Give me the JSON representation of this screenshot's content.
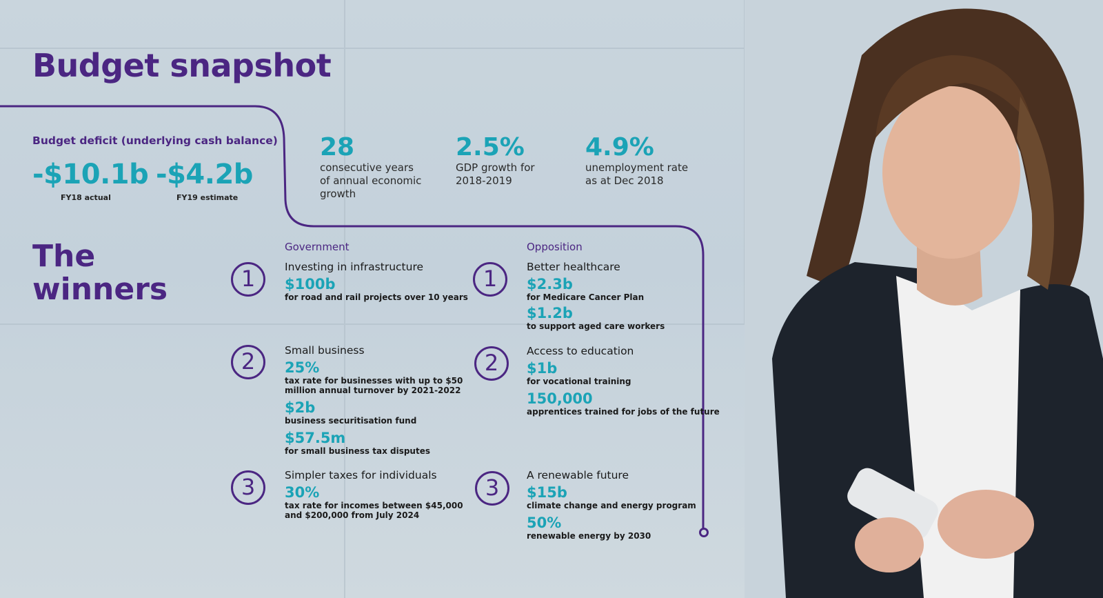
{
  "title": "Budget snapshot",
  "deficit": {
    "label": "Budget deficit (underlying cash balance)",
    "items": [
      {
        "value": "-$10.1b",
        "caption": "FY18 actual"
      },
      {
        "value": "-$4.2b",
        "caption": "FY19 estimate"
      }
    ]
  },
  "stats": [
    {
      "value": "28",
      "text1": "consecutive years",
      "text2": "of annual economic",
      "text3": "growth"
    },
    {
      "value": "2.5%",
      "text1": "GDP growth for",
      "text2": "2018-2019",
      "text3": ""
    },
    {
      "value": "4.9%",
      "text1": "unemployment rate",
      "text2": "as at Dec 2018",
      "text3": ""
    }
  ],
  "winners": {
    "line1": "The",
    "line2": "winners"
  },
  "government": {
    "heading": "Government",
    "items": [
      {
        "num": "1",
        "title": "Investing in infrastructure",
        "v1": "$100b",
        "d1": "for road and rail projects over 10 years"
      },
      {
        "num": "2",
        "title": "Small business",
        "v1": "25%",
        "d1a": "tax rate for businesses with up to $50",
        "d1b": "million annual turnover by 2021-2022",
        "v2": "$2b",
        "d2": "business securitisation fund",
        "v3": "$57.5m",
        "d3": "for small business tax disputes"
      },
      {
        "num": "3",
        "title": "Simpler taxes for individuals",
        "v1": "30%",
        "d1a": "tax rate for incomes between $45,000",
        "d1b": "and $200,000 from July 2024"
      }
    ]
  },
  "opposition": {
    "heading": "Opposition",
    "items": [
      {
        "num": "1",
        "title": "Better healthcare",
        "v1": "$2.3b",
        "d1": "for Medicare Cancer Plan",
        "v2": "$1.2b",
        "d2": "to support aged care workers"
      },
      {
        "num": "2",
        "title": "Access to education",
        "v1": "$1b",
        "d1": "for vocational training",
        "v2": "150,000",
        "d2": "apprentices trained for jobs of the future"
      },
      {
        "num": "3",
        "title": "A renewable future",
        "v1": "$15b",
        "d1": "climate change and energy program",
        "v2": "50%",
        "d2": "renewable energy by 2030"
      }
    ]
  },
  "colors": {
    "purple": "#4b2682",
    "teal": "#1ba3b6"
  }
}
